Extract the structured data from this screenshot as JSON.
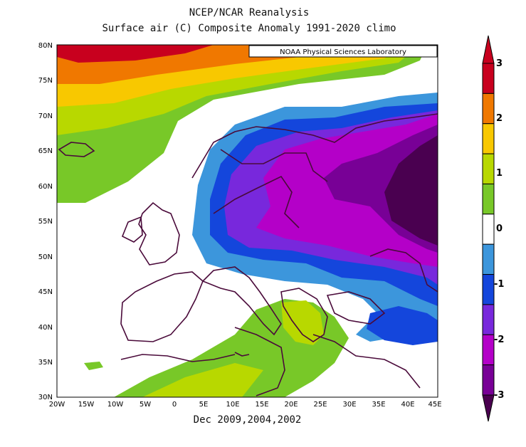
{
  "title_line1": "NCEP/NCAR Reanalysis",
  "title_line2": "Surface air (C) Composite Anomaly 1991-2020 climo",
  "footer": "Dec 2009,2004,2002",
  "credit": "NOAA Physical Sciences Laboratory",
  "lat_labels": [
    "80N",
    "75N",
    "70N",
    "65N",
    "60N",
    "55N",
    "50N",
    "45N",
    "40N",
    "35N",
    "30N"
  ],
  "lon_labels": [
    "20W",
    "15W",
    "10W",
    "5W",
    "0",
    "5E",
    "10E",
    "15E",
    "20E",
    "25E",
    "30E",
    "35E",
    "40E",
    "45E"
  ],
  "colorbar": {
    "labels": [
      "3",
      "2",
      "1",
      "0",
      "-1",
      "-2",
      "-3"
    ],
    "colors": [
      "#c8001e",
      "#f07800",
      "#f8c800",
      "#b8d800",
      "#78c828",
      "#ffffff",
      "#3c96dc",
      "#1446dc",
      "#7828dc",
      "#b400c8",
      "#780096"
    ]
  },
  "legend_anomaly_colors": {
    "strong_warm": "#c00020",
    "warm": "#f07800",
    "mild_warm": "#f8c800",
    "slight_warm": "#b8d800",
    "light_warm": "#78c828",
    "neutral": "#ffffff",
    "slight_cold": "#3c96dc",
    "cold": "#1446dc",
    "colder": "#7828dc",
    "very_cold": "#b400c8",
    "extreme_cold": "#780096",
    "darkest": "#4a0050"
  }
}
